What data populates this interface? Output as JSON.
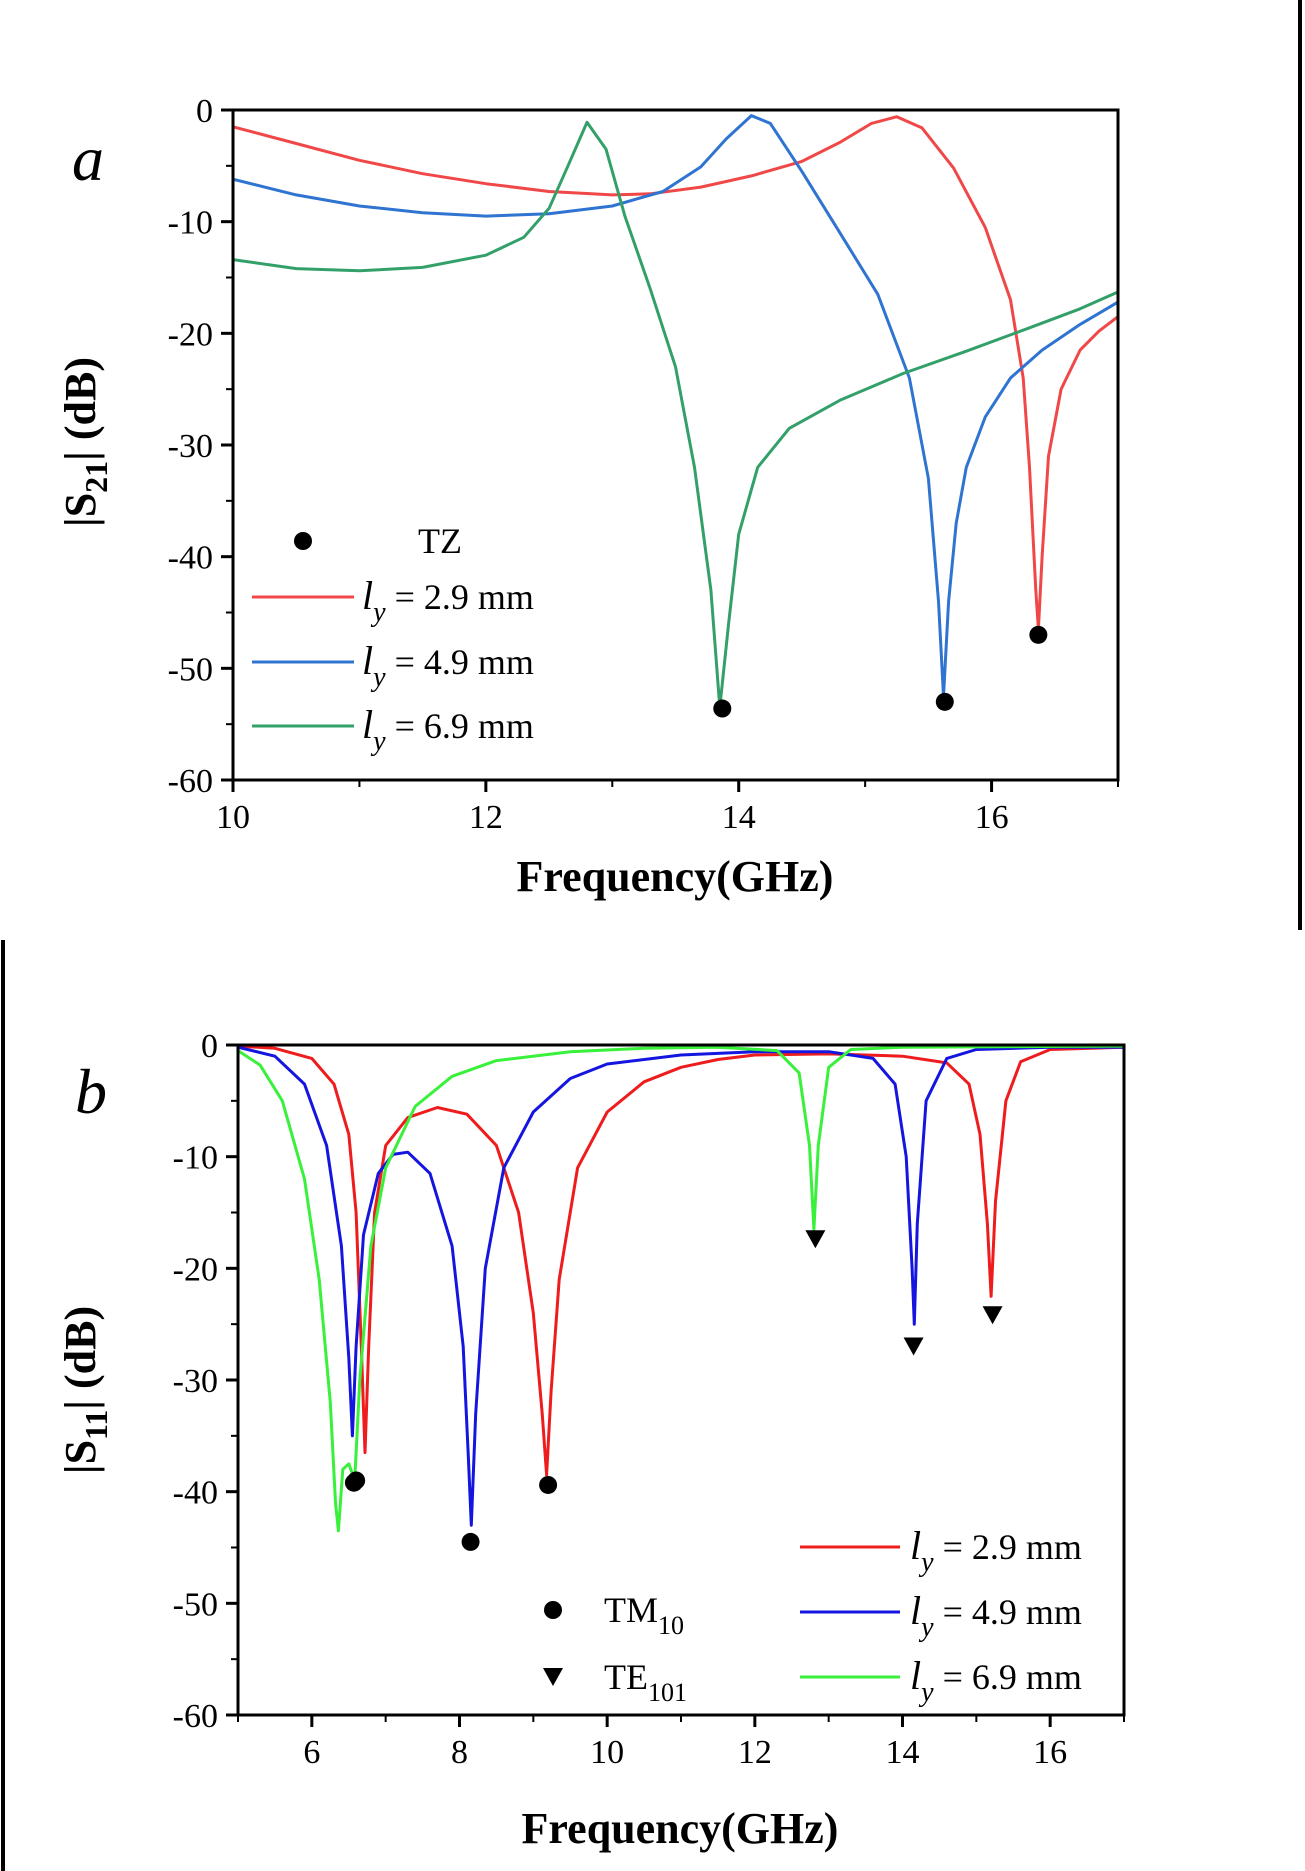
{
  "chart_data": [
    {
      "type": "line",
      "panel_label": "a",
      "xlabel": "Frequency(GHz)",
      "ylabel_main": "|S",
      "ylabel_sub": "21",
      "ylabel_tail": "| (dB)",
      "xlim": [
        10,
        17
      ],
      "ylim": [
        -60,
        0
      ],
      "xticks": [
        10,
        12,
        14,
        16
      ],
      "yticks": [
        0,
        -10,
        -20,
        -30,
        -40,
        -50,
        -60
      ],
      "legend_position": "bottom-left",
      "marker_legend": "TZ",
      "series": [
        {
          "legend_prefix": "l",
          "legend_sub": "y",
          "legend_suffix": " = 2.9 mm",
          "color": "#f04848",
          "points": [
            [
              10,
              -1.5
            ],
            [
              10.5,
              -3
            ],
            [
              11,
              -4.5
            ],
            [
              11.5,
              -5.7
            ],
            [
              12,
              -6.6
            ],
            [
              12.5,
              -7.3
            ],
            [
              13,
              -7.6
            ],
            [
              13.3,
              -7.5
            ],
            [
              13.7,
              -6.9
            ],
            [
              14.1,
              -5.9
            ],
            [
              14.5,
              -4.6
            ],
            [
              14.8,
              -2.9
            ],
            [
              15.05,
              -1.2
            ],
            [
              15.25,
              -0.6
            ],
            [
              15.45,
              -1.6
            ],
            [
              15.7,
              -5.2
            ],
            [
              15.95,
              -10.5
            ],
            [
              16.15,
              -17
            ],
            [
              16.25,
              -24
            ],
            [
              16.3,
              -32
            ],
            [
              16.35,
              -43
            ],
            [
              16.37,
              -46.5
            ],
            [
              16.4,
              -40
            ],
            [
              16.45,
              -31
            ],
            [
              16.55,
              -25
            ],
            [
              16.7,
              -21.5
            ],
            [
              16.85,
              -19.8
            ],
            [
              17,
              -18.5
            ]
          ],
          "markers": [
            [
              16.37,
              -47
            ]
          ]
        },
        {
          "legend_prefix": "l",
          "legend_sub": "y",
          "legend_suffix": " = 4.9 mm",
          "color": "#2f74d0",
          "points": [
            [
              10,
              -6.2
            ],
            [
              10.5,
              -7.6
            ],
            [
              11,
              -8.6
            ],
            [
              11.5,
              -9.2
            ],
            [
              12,
              -9.5
            ],
            [
              12.5,
              -9.3
            ],
            [
              13,
              -8.6
            ],
            [
              13.4,
              -7.3
            ],
            [
              13.7,
              -5.1
            ],
            [
              13.9,
              -2.6
            ],
            [
              14.1,
              -0.5
            ],
            [
              14.25,
              -1.2
            ],
            [
              14.5,
              -5.5
            ],
            [
              14.8,
              -11
            ],
            [
              15.1,
              -16.5
            ],
            [
              15.35,
              -24
            ],
            [
              15.5,
              -33
            ],
            [
              15.58,
              -44
            ],
            [
              15.62,
              -52.5
            ],
            [
              15.66,
              -44
            ],
            [
              15.72,
              -37
            ],
            [
              15.8,
              -32
            ],
            [
              15.95,
              -27.5
            ],
            [
              16.15,
              -24
            ],
            [
              16.4,
              -21.5
            ],
            [
              16.7,
              -19.2
            ],
            [
              17,
              -17.2
            ]
          ],
          "markers": [
            [
              15.63,
              -53
            ]
          ]
        },
        {
          "legend_prefix": "l",
          "legend_sub": "y",
          "legend_suffix": " = 6.9 mm",
          "color": "#33a06a",
          "points": [
            [
              10,
              -13.4
            ],
            [
              10.5,
              -14.2
            ],
            [
              11,
              -14.4
            ],
            [
              11.5,
              -14.1
            ],
            [
              12,
              -13
            ],
            [
              12.3,
              -11.4
            ],
            [
              12.5,
              -8.8
            ],
            [
              12.65,
              -5
            ],
            [
              12.8,
              -1.1
            ],
            [
              12.95,
              -3.5
            ],
            [
              13.1,
              -9.5
            ],
            [
              13.3,
              -16
            ],
            [
              13.5,
              -23
            ],
            [
              13.65,
              -32
            ],
            [
              13.78,
              -43
            ],
            [
              13.85,
              -53.5
            ],
            [
              13.92,
              -46
            ],
            [
              14,
              -38
            ],
            [
              14.15,
              -32
            ],
            [
              14.4,
              -28.5
            ],
            [
              14.8,
              -26
            ],
            [
              15.3,
              -23.6
            ],
            [
              15.8,
              -21.6
            ],
            [
              16.3,
              -19.5
            ],
            [
              16.7,
              -17.8
            ],
            [
              17,
              -16.3
            ]
          ],
          "markers": [
            [
              13.87,
              -53.6
            ]
          ]
        }
      ]
    },
    {
      "type": "line",
      "panel_label": "b",
      "xlabel": "Frequency(GHz)",
      "ylabel_main": "|S",
      "ylabel_sub": "11",
      "ylabel_tail": "| (dB)",
      "xlim": [
        5,
        17
      ],
      "ylim": [
        -60,
        0
      ],
      "xticks": [
        6,
        8,
        10,
        12,
        14,
        16
      ],
      "yticks": [
        0,
        -10,
        -20,
        -30,
        -40,
        -50,
        -60
      ],
      "legend_position": "bottom-right",
      "marker_legend": [
        {
          "symbol": "circle",
          "main": "TM",
          "sub": "10"
        },
        {
          "symbol": "triangle-down",
          "main": "TE",
          "sub": "101"
        }
      ],
      "series": [
        {
          "legend_prefix": "l",
          "legend_sub": "y",
          "legend_suffix": " = 2.9 mm",
          "color": "#ee1c1c",
          "points": [
            [
              5,
              -0.1
            ],
            [
              5.5,
              -0.3
            ],
            [
              6,
              -1.2
            ],
            [
              6.3,
              -3.5
            ],
            [
              6.5,
              -8
            ],
            [
              6.6,
              -15
            ],
            [
              6.67,
              -27
            ],
            [
              6.72,
              -36.5
            ],
            [
              6.77,
              -27
            ],
            [
              6.85,
              -15
            ],
            [
              7,
              -9
            ],
            [
              7.3,
              -6.5
            ],
            [
              7.7,
              -5.6
            ],
            [
              8.1,
              -6.2
            ],
            [
              8.5,
              -9
            ],
            [
              8.8,
              -15
            ],
            [
              9.0,
              -24
            ],
            [
              9.12,
              -33
            ],
            [
              9.18,
              -38.5
            ],
            [
              9.24,
              -31
            ],
            [
              9.35,
              -21
            ],
            [
              9.6,
              -11
            ],
            [
              10,
              -6
            ],
            [
              10.5,
              -3.3
            ],
            [
              11,
              -2
            ],
            [
              11.5,
              -1.3
            ],
            [
              12,
              -0.9
            ],
            [
              13,
              -0.8
            ],
            [
              14,
              -1
            ],
            [
              14.6,
              -1.6
            ],
            [
              14.9,
              -3.5
            ],
            [
              15.05,
              -8
            ],
            [
              15.15,
              -16
            ],
            [
              15.2,
              -22.5
            ],
            [
              15.26,
              -14
            ],
            [
              15.4,
              -5
            ],
            [
              15.6,
              -1.5
            ],
            [
              16,
              -0.4
            ],
            [
              17,
              -0.2
            ]
          ],
          "markers": [
            [
              6.57,
              -39.2
            ],
            [
              9.2,
              -39.4
            ]
          ],
          "te_markers": [
            [
              15.22,
              -24.2
            ]
          ]
        },
        {
          "legend_prefix": "l",
          "legend_sub": "y",
          "legend_suffix": " = 4.9 mm",
          "color": "#1515e0",
          "points": [
            [
              5,
              -0.2
            ],
            [
              5.5,
              -1
            ],
            [
              5.9,
              -3.5
            ],
            [
              6.2,
              -9
            ],
            [
              6.4,
              -18
            ],
            [
              6.5,
              -28
            ],
            [
              6.55,
              -35
            ],
            [
              6.6,
              -27
            ],
            [
              6.7,
              -17
            ],
            [
              6.9,
              -11.5
            ],
            [
              7.1,
              -9.8
            ],
            [
              7.3,
              -9.6
            ],
            [
              7.6,
              -11.5
            ],
            [
              7.9,
              -18
            ],
            [
              8.05,
              -27
            ],
            [
              8.12,
              -37
            ],
            [
              8.16,
              -43
            ],
            [
              8.22,
              -33
            ],
            [
              8.35,
              -20
            ],
            [
              8.6,
              -11
            ],
            [
              9,
              -6
            ],
            [
              9.5,
              -3
            ],
            [
              10,
              -1.7
            ],
            [
              11,
              -0.9
            ],
            [
              12,
              -0.6
            ],
            [
              13,
              -0.6
            ],
            [
              13.6,
              -1.2
            ],
            [
              13.9,
              -3.5
            ],
            [
              14.05,
              -10
            ],
            [
              14.13,
              -20
            ],
            [
              14.16,
              -25
            ],
            [
              14.2,
              -16
            ],
            [
              14.32,
              -5
            ],
            [
              14.6,
              -1.2
            ],
            [
              15,
              -0.4
            ],
            [
              16,
              -0.2
            ],
            [
              17,
              -0.2
            ]
          ],
          "markers": [
            [
              8.15,
              -44.5
            ]
          ],
          "te_markers": [
            [
              14.15,
              -27
            ]
          ]
        },
        {
          "legend_prefix": "l",
          "legend_sub": "y",
          "legend_suffix": " = 6.9 mm",
          "color": "#39f03a",
          "points": [
            [
              5,
              -0.5
            ],
            [
              5.3,
              -1.8
            ],
            [
              5.6,
              -5
            ],
            [
              5.9,
              -12
            ],
            [
              6.1,
              -21
            ],
            [
              6.25,
              -32
            ],
            [
              6.32,
              -41
            ],
            [
              6.36,
              -43.5
            ],
            [
              6.42,
              -38
            ],
            [
              6.5,
              -37.5
            ],
            [
              6.58,
              -39
            ],
            [
              6.65,
              -30
            ],
            [
              6.8,
              -18
            ],
            [
              7,
              -11
            ],
            [
              7.4,
              -5.5
            ],
            [
              7.9,
              -2.8
            ],
            [
              8.5,
              -1.4
            ],
            [
              9.5,
              -0.6
            ],
            [
              10.5,
              -0.3
            ],
            [
              11.5,
              -0.2
            ],
            [
              12.3,
              -0.5
            ],
            [
              12.6,
              -2.5
            ],
            [
              12.74,
              -9
            ],
            [
              12.8,
              -16.5
            ],
            [
              12.86,
              -9
            ],
            [
              13,
              -2
            ],
            [
              13.3,
              -0.4
            ],
            [
              14,
              -0.2
            ],
            [
              17,
              -0.1
            ]
          ],
          "markers": [
            [
              6.6,
              -39
            ]
          ],
          "te_markers": [
            [
              12.82,
              -17.4
            ]
          ]
        }
      ]
    }
  ]
}
